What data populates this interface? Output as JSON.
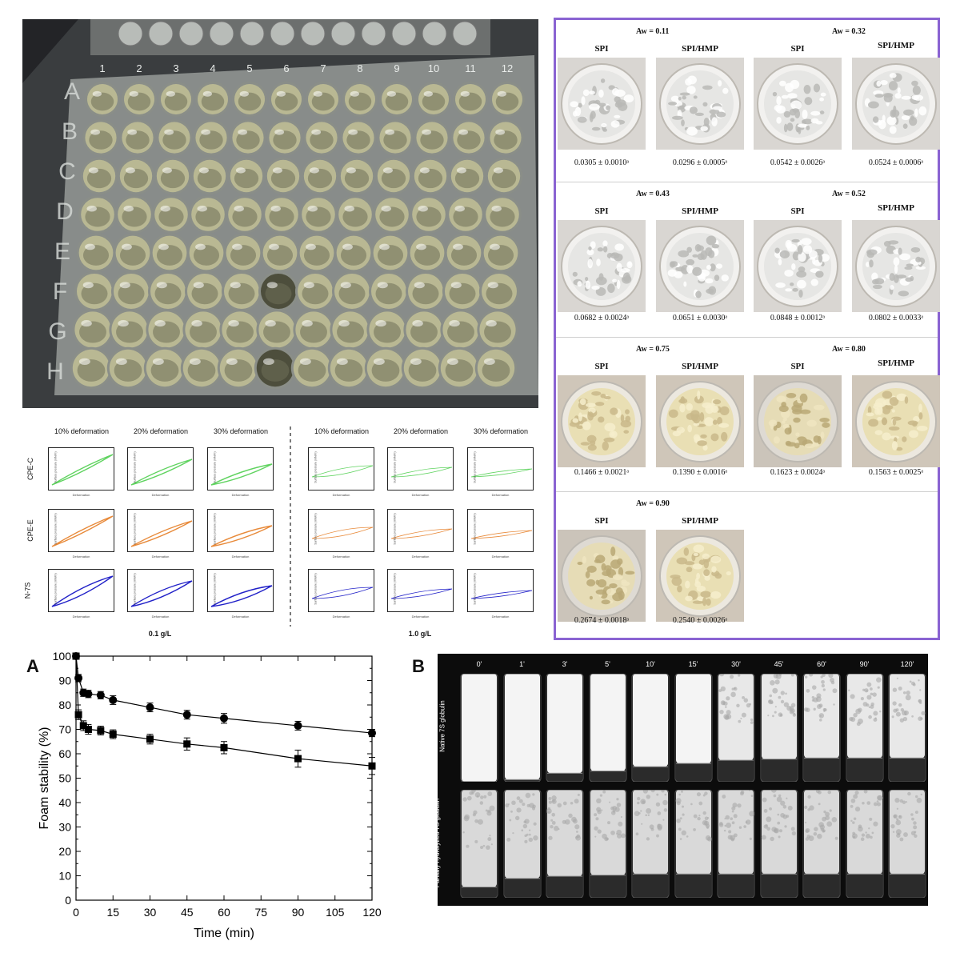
{
  "plate": {
    "column_numbers": [
      "1",
      "2",
      "3",
      "4",
      "5",
      "6",
      "7",
      "8",
      "9",
      "10",
      "11",
      "12"
    ],
    "row_letters": [
      "A",
      "B",
      "C",
      "D",
      "E",
      "F",
      "G",
      "H"
    ]
  },
  "aw_panel": {
    "rows": [
      {
        "groups": [
          {
            "aw": "Aw = 0.11",
            "samples": [
              {
                "label": "SPI",
                "value": "0.0305 ± 0.0010ᵃ",
                "tone": "dry"
              },
              {
                "label": "SPI/HMP",
                "value": "0.0296 ± 0.0005ᵃ",
                "tone": "dry"
              }
            ]
          },
          {
            "aw": "Aw = 0.32",
            "samples": [
              {
                "label": "SPI",
                "value": "0.0542 ± 0.0026ᵃ",
                "tone": "dry"
              },
              {
                "label": "SPI/HMP",
                "value": "0.0524 ± 0.0006ᵃ",
                "tone": "dry"
              }
            ]
          }
        ]
      },
      {
        "groups": [
          {
            "aw": "Aw = 0.43",
            "samples": [
              {
                "label": "SPI",
                "value": "0.0682 ± 0.0024ᵃ",
                "tone": "dry"
              },
              {
                "label": "SPI/HMP",
                "value": "0.0651 ± 0.0030ᵃ",
                "tone": "dry"
              }
            ]
          },
          {
            "aw": "Aw = 0.52",
            "samples": [
              {
                "label": "SPI",
                "value": "0.0848 ± 0.0012ᵃ",
                "tone": "dry"
              },
              {
                "label": "SPI/HMP",
                "value": "0.0802 ± 0.0033ᵃ",
                "tone": "dry"
              }
            ]
          }
        ]
      },
      {
        "groups": [
          {
            "aw": "Aw = 0.75",
            "samples": [
              {
                "label": "SPI",
                "value": "0.1466 ± 0.0021ᵃ",
                "tone": "moist"
              },
              {
                "label": "SPI/HMP",
                "value": "0.1390 ± 0.0016ᵃ",
                "tone": "moist"
              }
            ]
          },
          {
            "aw": "Aw = 0.80",
            "samples": [
              {
                "label": "SPI",
                "value": "0.1623 ± 0.0024ᵃ",
                "tone": "wet"
              },
              {
                "label": "SPI/HMP",
                "value": "0.1563 ± 0.0025ᵃ",
                "tone": "moist"
              }
            ]
          }
        ]
      },
      {
        "groups": [
          {
            "aw": "Aw = 0.90",
            "samples": [
              {
                "label": "SPI",
                "value": "0.2674 ± 0.0018ᵃ",
                "tone": "wet"
              },
              {
                "label": "SPI/HMP",
                "value": "0.2540 ± 0.0026ᵃ",
                "tone": "moist"
              }
            ]
          }
        ]
      }
    ]
  },
  "deformation": {
    "headers": [
      "10% deformation",
      "20% deformation",
      "30% deformation"
    ],
    "row_labels": [
      "CPE-C",
      "CPE-E",
      "N-7S"
    ],
    "row_colors": [
      "#5fd35f",
      "#e88a3a",
      "#2121c8"
    ],
    "concentrations": [
      "0.1 g/L",
      "1.0 g/L"
    ],
    "x_axis_label": "Deformation",
    "y_axis_label": "Surface pressure (mN/m)"
  },
  "panel_a_letter": "A",
  "panel_b_letter": "B",
  "chart_data": {
    "type": "line",
    "xlabel": "Time (min)",
    "ylabel": "Foam stability (%)",
    "xlim": [
      0,
      120
    ],
    "ylim": [
      0,
      100
    ],
    "xticks": [
      0,
      15,
      30,
      45,
      60,
      75,
      90,
      105,
      120
    ],
    "yticks": [
      0,
      10,
      20,
      30,
      40,
      50,
      60,
      70,
      80,
      90,
      100
    ],
    "grid": false,
    "series": [
      {
        "marker": "circle",
        "x": [
          0,
          1,
          3,
          5,
          10,
          15,
          30,
          45,
          60,
          90,
          120
        ],
        "y": [
          100,
          91,
          85,
          84.5,
          84,
          82,
          79,
          76,
          74.5,
          71.5,
          68.5
        ],
        "err": [
          0,
          1.5,
          1.5,
          1.5,
          1.5,
          1.8,
          1.8,
          1.8,
          2,
          1.8,
          1.5
        ]
      },
      {
        "marker": "square",
        "x": [
          0,
          1,
          3,
          5,
          10,
          15,
          30,
          45,
          60,
          90,
          120
        ],
        "y": [
          100,
          76,
          71.5,
          70,
          69.5,
          68,
          66,
          64,
          62.5,
          58,
          55
        ],
        "err": [
          0,
          2,
          2,
          2,
          1.8,
          1.8,
          2,
          2.5,
          2.5,
          3.5,
          3.5
        ]
      }
    ]
  },
  "panel_b": {
    "times": [
      "0'",
      "1'",
      "3'",
      "5'",
      "10'",
      "15'",
      "30'",
      "45'",
      "60'",
      "90'",
      "120'"
    ],
    "row_labels": [
      "Native 7S globulin",
      "Partially hydrolyzed 7S globulin"
    ],
    "native_liquid_fraction": [
      0,
      0.02,
      0.08,
      0.1,
      0.14,
      0.17,
      0.2,
      0.21,
      0.22,
      0.22,
      0.22
    ],
    "hydrolyzed_liquid_fraction": [
      0.1,
      0.18,
      0.2,
      0.21,
      0.22,
      0.22,
      0.22,
      0.22,
      0.22,
      0.22,
      0.22
    ]
  }
}
